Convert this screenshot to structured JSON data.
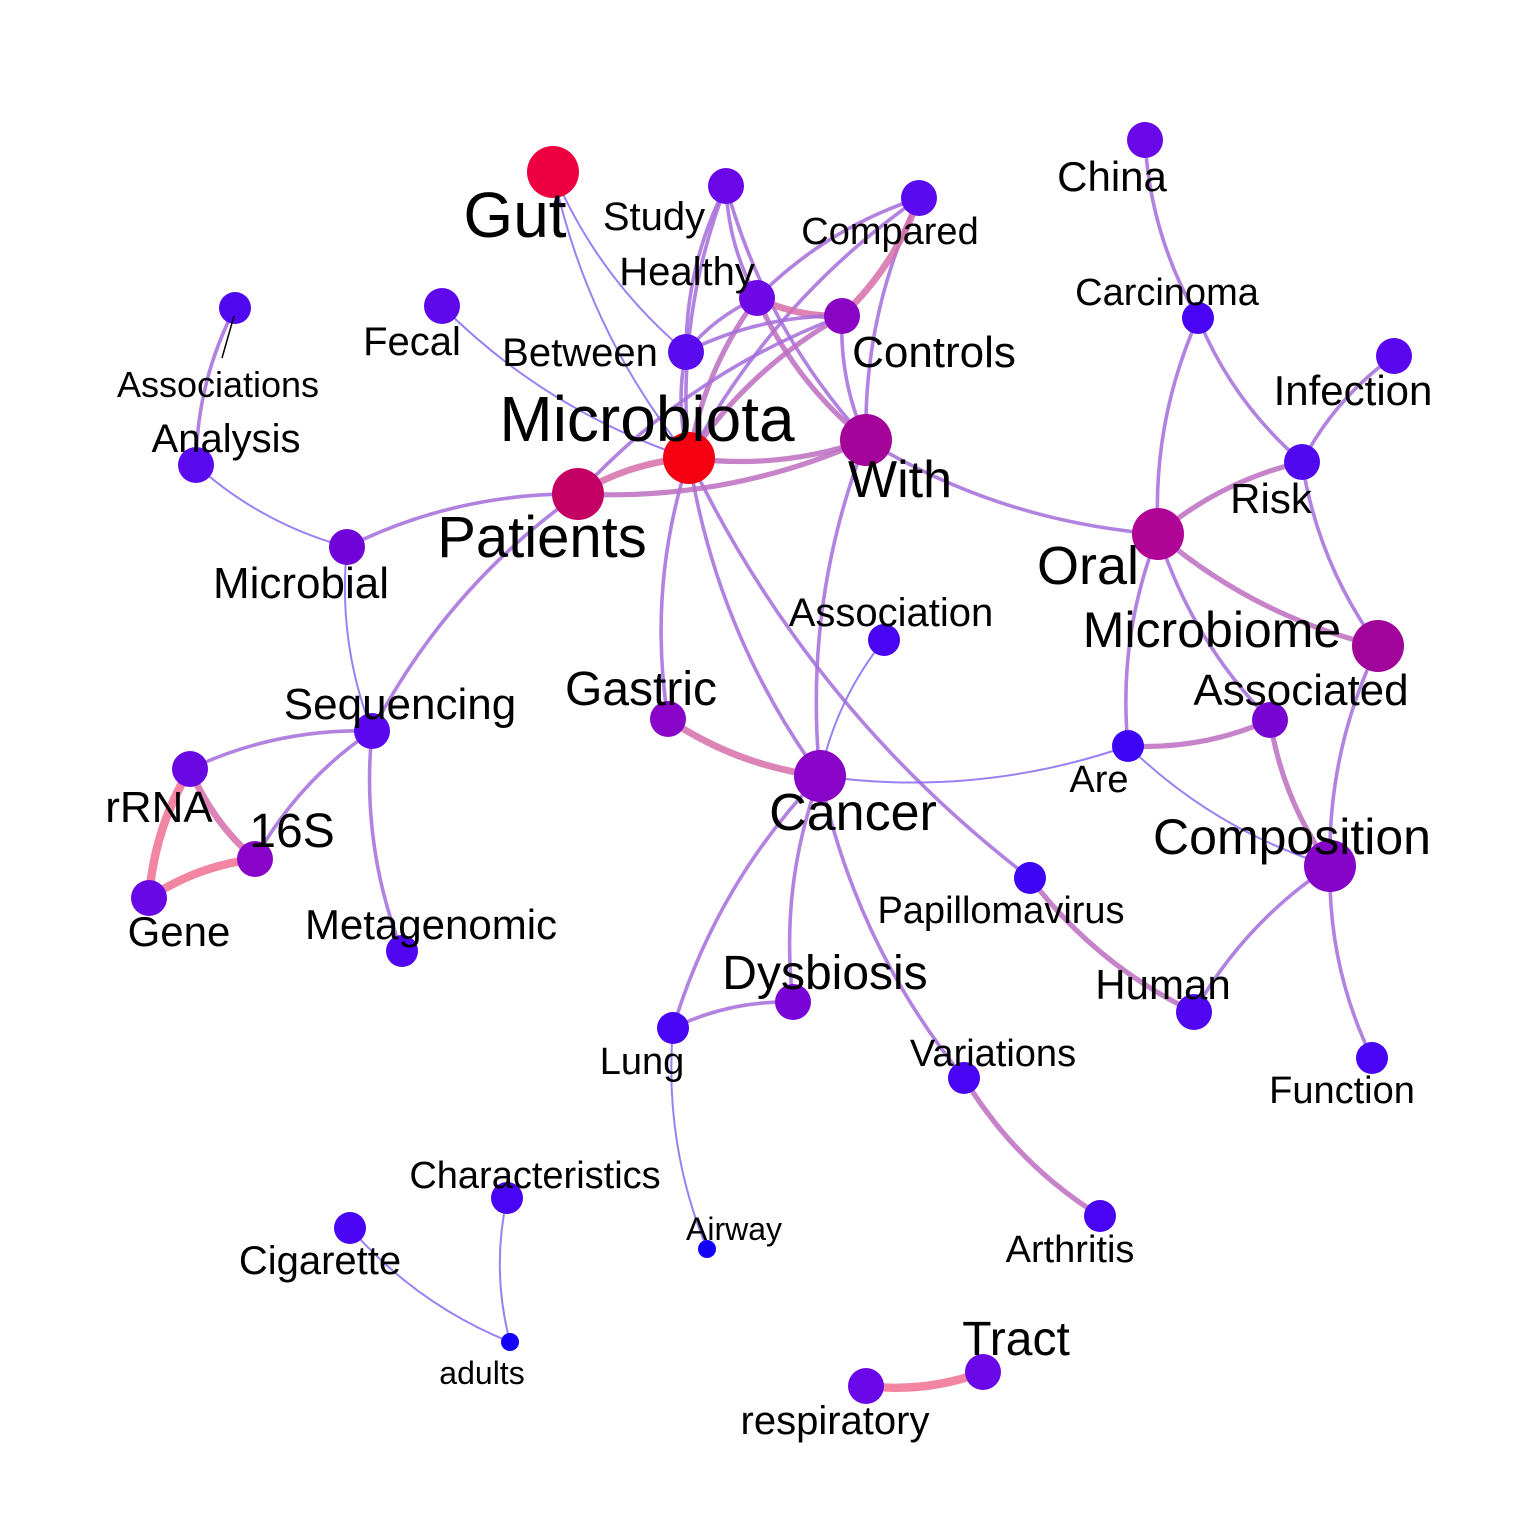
{
  "nodes": [
    {
      "id": "gut",
      "label": "Gut",
      "color": "#ee0040",
      "size": 3
    },
    {
      "id": "microbiota",
      "label": "Microbiota",
      "color": "#f40010",
      "size": 3
    },
    {
      "id": "study",
      "label": "Study",
      "color": "#6a08e8",
      "size": 2
    },
    {
      "id": "compared",
      "label": "Compared",
      "color": "#5a0aee",
      "size": 2
    },
    {
      "id": "healthy",
      "label": "Healthy",
      "color": "#6e08e4",
      "size": 2
    },
    {
      "id": "fecal",
      "label": "Fecal",
      "color": "#6008ec",
      "size": 2
    },
    {
      "id": "between",
      "label": "Between",
      "color": "#5a0aee",
      "size": 2
    },
    {
      "id": "controls",
      "label": "Controls",
      "color": "#8a04c4",
      "size": 2
    },
    {
      "id": "with",
      "label": "With",
      "color": "#a4049a",
      "size": 3
    },
    {
      "id": "patients",
      "label": "Patients",
      "color": "#c40064",
      "size": 3
    },
    {
      "id": "associations",
      "label": "Associations",
      "color": "#5008f0",
      "size": 1
    },
    {
      "id": "analysis",
      "label": "Analysis",
      "color": "#5a0aee",
      "size": 2
    },
    {
      "id": "microbial",
      "label": "Microbial",
      "color": "#7004d8",
      "size": 2
    },
    {
      "id": "china",
      "label": "China",
      "color": "#6a08e8",
      "size": 2
    },
    {
      "id": "carcinoma",
      "label": "Carcinoma",
      "color": "#4a04f4",
      "size": 1
    },
    {
      "id": "infection",
      "label": "Infection",
      "color": "#5a06ee",
      "size": 2
    },
    {
      "id": "risk",
      "label": "Risk",
      "color": "#5008f0",
      "size": 2
    },
    {
      "id": "oral",
      "label": "Oral",
      "color": "#b00496",
      "size": 3
    },
    {
      "id": "microbiome",
      "label": "Microbiome",
      "color": "#a00498",
      "size": 3
    },
    {
      "id": "association",
      "label": "Association",
      "color": "#4a04f4",
      "size": 1
    },
    {
      "id": "sequencing",
      "label": "Sequencing",
      "color": "#5a06ee",
      "size": 2
    },
    {
      "id": "gastric",
      "label": "Gastric",
      "color": "#8804c8",
      "size": 2
    },
    {
      "id": "associated",
      "label": "Associated",
      "color": "#7804d4",
      "size": 2
    },
    {
      "id": "are",
      "label": "Are",
      "color": "#3e04f6",
      "size": 1
    },
    {
      "id": "rrna",
      "label": "rRNA",
      "color": "#6a08e4",
      "size": 2
    },
    {
      "id": "16s",
      "label": "16S",
      "color": "#8804c8",
      "size": 2
    },
    {
      "id": "cancer",
      "label": "Cancer",
      "color": "#8804c8",
      "size": 3
    },
    {
      "id": "composition",
      "label": "Composition",
      "color": "#8404c8",
      "size": 3
    },
    {
      "id": "gene",
      "label": "Gene",
      "color": "#6808e4",
      "size": 2
    },
    {
      "id": "metagenomic",
      "label": "Metagenomic",
      "color": "#5006f0",
      "size": 1
    },
    {
      "id": "papillomavirus",
      "label": "Papillomavirus",
      "color": "#3e04f6",
      "size": 1
    },
    {
      "id": "dysbiosis",
      "label": "Dysbiosis",
      "color": "#7804d8",
      "size": 2
    },
    {
      "id": "human",
      "label": "Human",
      "color": "#5006f0",
      "size": 2
    },
    {
      "id": "lung",
      "label": "Lung",
      "color": "#4a04f4",
      "size": 1
    },
    {
      "id": "variations",
      "label": "Variations",
      "color": "#4a04f4",
      "size": 1
    },
    {
      "id": "function",
      "label": "Function",
      "color": "#4a04f4",
      "size": 1
    },
    {
      "id": "characteristics",
      "label": "Characteristics",
      "color": "#4a04f4",
      "size": 1
    },
    {
      "id": "airway",
      "label": "Airway",
      "color": "#1400fa",
      "size": 0
    },
    {
      "id": "arthritis",
      "label": "Arthritis",
      "color": "#4a04f4",
      "size": 1
    },
    {
      "id": "cigarette",
      "label": "Cigarette",
      "color": "#4a04f4",
      "size": 1
    },
    {
      "id": "adults",
      "label": "adults",
      "color": "#1400fa",
      "size": 0
    },
    {
      "id": "tract",
      "label": "Tract",
      "color": "#6a08e8",
      "size": 2
    },
    {
      "id": "respiratory",
      "label": "respiratory",
      "color": "#6a08e8",
      "size": 2
    }
  ],
  "edges": [
    {
      "s": "gut",
      "t": "between",
      "w": 1
    },
    {
      "s": "gut",
      "t": "microbiota",
      "w": 1
    },
    {
      "s": "study",
      "t": "microbiota",
      "w": 2
    },
    {
      "s": "study",
      "t": "healthy",
      "w": 2
    },
    {
      "s": "study",
      "t": "with",
      "w": 2
    },
    {
      "s": "study",
      "t": "between",
      "w": 2
    },
    {
      "s": "compared",
      "t": "healthy",
      "w": 2
    },
    {
      "s": "compared",
      "t": "microbiota",
      "w": 2
    },
    {
      "s": "compared",
      "t": "with",
      "w": 2
    },
    {
      "s": "healthy",
      "t": "controls",
      "w": 4
    },
    {
      "s": "healthy",
      "t": "microbiota",
      "w": 3
    },
    {
      "s": "healthy",
      "t": "with",
      "w": 3
    },
    {
      "s": "healthy",
      "t": "between",
      "w": 2
    },
    {
      "s": "controls",
      "t": "microbiota",
      "w": 3
    },
    {
      "s": "controls",
      "t": "patients",
      "w": 2
    },
    {
      "s": "controls",
      "t": "with",
      "w": 2
    },
    {
      "s": "controls",
      "t": "compared",
      "w": 4
    },
    {
      "s": "controls",
      "t": "between",
      "w": 2
    },
    {
      "s": "between",
      "t": "microbiota",
      "w": 2
    },
    {
      "s": "fecal",
      "t": "microbiota",
      "w": 1
    },
    {
      "s": "microbiota",
      "t": "patients",
      "w": 4
    },
    {
      "s": "microbiota",
      "t": "with",
      "w": 3
    },
    {
      "s": "microbiota",
      "t": "gastric",
      "w": 2
    },
    {
      "s": "microbiota",
      "t": "cancer",
      "w": 2
    },
    {
      "s": "microbiota",
      "t": "papillomavirus",
      "w": 2
    },
    {
      "s": "patients",
      "t": "with",
      "w": 3
    },
    {
      "s": "patients",
      "t": "microbial",
      "w": 2
    },
    {
      "s": "patients",
      "t": "sequencing",
      "w": 2
    },
    {
      "s": "associations",
      "t": "analysis",
      "w": 2
    },
    {
      "s": "analysis",
      "t": "microbial",
      "w": 1
    },
    {
      "s": "microbial",
      "t": "sequencing",
      "w": 1
    },
    {
      "s": "with",
      "t": "oral",
      "w": 2
    },
    {
      "s": "with",
      "t": "cancer",
      "w": 2
    },
    {
      "s": "china",
      "t": "carcinoma",
      "w": 2
    },
    {
      "s": "carcinoma",
      "t": "risk",
      "w": 2
    },
    {
      "s": "carcinoma",
      "t": "oral",
      "w": 2
    },
    {
      "s": "infection",
      "t": "risk",
      "w": 2
    },
    {
      "s": "risk",
      "t": "oral",
      "w": 3
    },
    {
      "s": "risk",
      "t": "microbiome",
      "w": 2
    },
    {
      "s": "oral",
      "t": "microbiome",
      "w": 3
    },
    {
      "s": "oral",
      "t": "associated",
      "w": 2
    },
    {
      "s": "oral",
      "t": "are",
      "w": 2
    },
    {
      "s": "microbiome",
      "t": "composition",
      "w": 2
    },
    {
      "s": "association",
      "t": "cancer",
      "w": 1
    },
    {
      "s": "sequencing",
      "t": "rrna",
      "w": 2
    },
    {
      "s": "sequencing",
      "t": "16s",
      "w": 2
    },
    {
      "s": "sequencing",
      "t": "metagenomic",
      "w": 2
    },
    {
      "s": "rrna",
      "t": "16s",
      "w": 4
    },
    {
      "s": "rrna",
      "t": "gene",
      "w": 5
    },
    {
      "s": "16s",
      "t": "gene",
      "w": 5
    },
    {
      "s": "gastric",
      "t": "cancer",
      "w": 4
    },
    {
      "s": "cancer",
      "t": "are",
      "w": 1
    },
    {
      "s": "cancer",
      "t": "dysbiosis",
      "w": 2
    },
    {
      "s": "cancer",
      "t": "lung",
      "w": 2
    },
    {
      "s": "cancer",
      "t": "variations",
      "w": 2
    },
    {
      "s": "are",
      "t": "associated",
      "w": 3
    },
    {
      "s": "are",
      "t": "composition",
      "w": 1
    },
    {
      "s": "associated",
      "t": "composition",
      "w": 3
    },
    {
      "s": "composition",
      "t": "human",
      "w": 2
    },
    {
      "s": "composition",
      "t": "function",
      "w": 2
    },
    {
      "s": "papillomavirus",
      "t": "human",
      "w": 3
    },
    {
      "s": "dysbiosis",
      "t": "lung",
      "w": 2
    },
    {
      "s": "lung",
      "t": "airway",
      "w": 1
    },
    {
      "s": "variations",
      "t": "arthritis",
      "w": 3
    },
    {
      "s": "characteristics",
      "t": "adults",
      "w": 1
    },
    {
      "s": "cigarette",
      "t": "adults",
      "w": 1
    },
    {
      "s": "respiratory",
      "t": "tract",
      "w": 5
    }
  ]
}
